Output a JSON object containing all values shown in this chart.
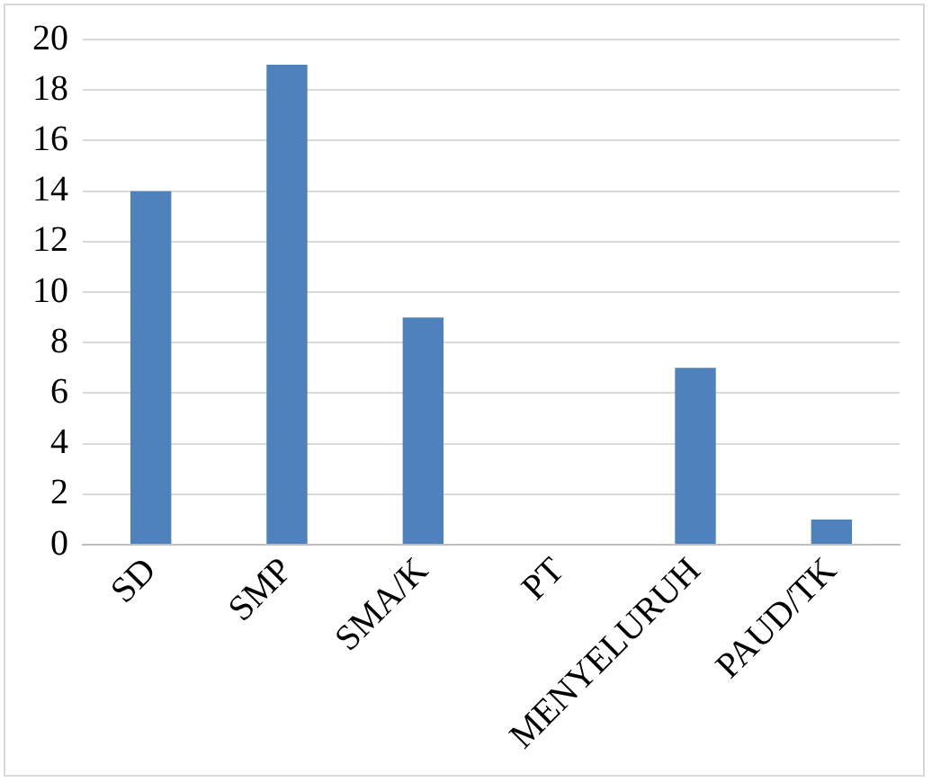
{
  "chart_data": {
    "type": "bar",
    "categories": [
      "SD",
      "SMP",
      "SMA/K",
      "PT",
      "MENYELURUH",
      "PAUD/TK"
    ],
    "values": [
      14,
      19,
      9,
      0,
      7,
      1
    ],
    "color": "#4f81bd",
    "ylim": [
      0,
      20
    ],
    "yticks": [
      0,
      2,
      4,
      6,
      8,
      10,
      12,
      14,
      16,
      18,
      20
    ],
    "grid": "y"
  }
}
